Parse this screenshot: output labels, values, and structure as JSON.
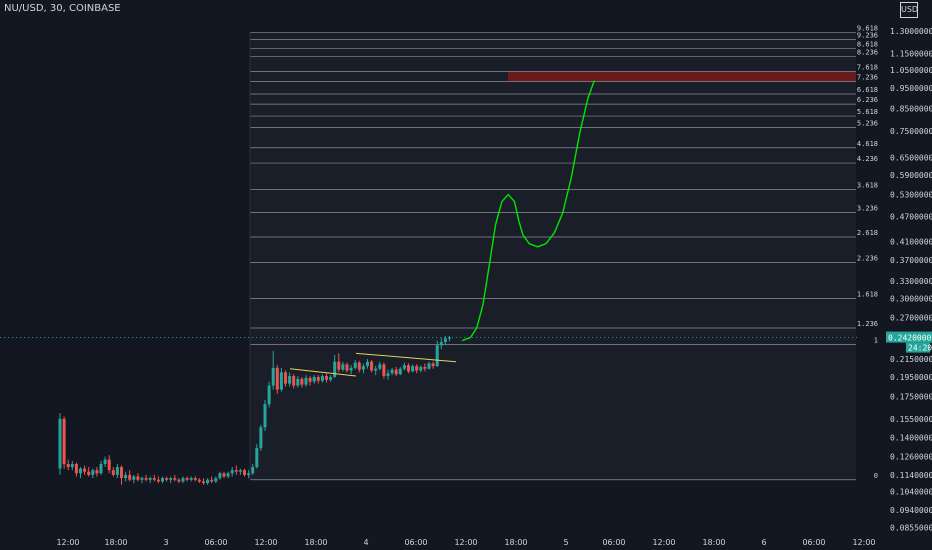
{
  "header": {
    "title": "NU/USD, 30, COINBASE",
    "currency": "USD"
  },
  "colors": {
    "background": "#131722",
    "text": "#d1d4dc",
    "up": "#26a69a",
    "down": "#ef5350",
    "projection": "#00e600",
    "trendline": "#e6d35a",
    "fib_line": "#8a8e97",
    "highlight": "#6b1a1a",
    "price_tag": "#26a69a"
  },
  "chart_data": {
    "type": "candlestick",
    "symbol": "NU/USD",
    "interval": "30",
    "exchange": "COINBASE",
    "y_axis": {
      "scale": "log",
      "range": [
        0.082,
        1.38
      ],
      "tick_labels": [
        "1.30000000",
        "1.15000000",
        "1.05000000",
        "0.95000000",
        "0.85000000",
        "0.75000000",
        "0.65000000",
        "0.59000000",
        "0.53000000",
        "0.47000000",
        "0.41000000",
        "0.37000000",
        "0.33000000",
        "0.30000000",
        "0.27000000",
        "0.24200000",
        "0.21500000",
        "0.19500000",
        "0.17500000",
        "0.15500000",
        "0.14000000",
        "0.12600000",
        "0.11400000",
        "0.10400000",
        "0.09400000",
        "0.08550000"
      ],
      "tick_values": [
        1.3,
        1.15,
        1.05,
        0.95,
        0.85,
        0.75,
        0.65,
        0.59,
        0.53,
        0.47,
        0.41,
        0.37,
        0.33,
        0.3,
        0.27,
        0.242,
        0.215,
        0.195,
        0.175,
        0.155,
        0.14,
        0.126,
        0.114,
        0.104,
        0.094,
        0.0855
      ]
    },
    "x_axis": {
      "labels": [
        "12:00",
        "18:00",
        "3",
        "06:00",
        "12:00",
        "18:00",
        "4",
        "06:00",
        "12:00",
        "18:00",
        "5",
        "06:00",
        "12:00",
        "18:00",
        "6",
        "06:00",
        "12:00"
      ]
    },
    "current_price": {
      "label": "0.24200000",
      "value": 0.242,
      "countdown": "24:20"
    },
    "fib_levels": [
      {
        "label": "0",
        "value": 0.111
      },
      {
        "label": "1",
        "value": 0.233
      },
      {
        "label": "1.236",
        "value": 0.255
      },
      {
        "label": "1.618",
        "value": 0.3
      },
      {
        "label": "2.236",
        "value": 0.365
      },
      {
        "label": "2.618",
        "value": 0.42
      },
      {
        "label": "3.236",
        "value": 0.48
      },
      {
        "label": "3.618",
        "value": 0.545
      },
      {
        "label": "4.236",
        "value": 0.63
      },
      {
        "label": "4.618",
        "value": 0.685
      },
      {
        "label": "5.236",
        "value": 0.765
      },
      {
        "label": "5.618",
        "value": 0.815
      },
      {
        "label": "6.236",
        "value": 0.87
      },
      {
        "label": "6.618",
        "value": 0.92
      },
      {
        "label": "7.236",
        "value": 0.985
      },
      {
        "label": "7.618",
        "value": 1.04
      },
      {
        "label": "8.236",
        "value": 1.13
      },
      {
        "label": "8.618",
        "value": 1.18
      },
      {
        "label": "9.236",
        "value": 1.24
      },
      {
        "label": "9.618",
        "value": 1.29
      }
    ],
    "highlight_level": "7.236",
    "candles": [
      {
        "o": 0.118,
        "h": 0.16,
        "l": 0.114,
        "c": 0.155
      },
      {
        "o": 0.155,
        "h": 0.157,
        "l": 0.118,
        "c": 0.121
      },
      {
        "o": 0.121,
        "h": 0.124,
        "l": 0.117,
        "c": 0.119
      },
      {
        "o": 0.119,
        "h": 0.123,
        "l": 0.117,
        "c": 0.121
      },
      {
        "o": 0.121,
        "h": 0.122,
        "l": 0.113,
        "c": 0.115
      },
      {
        "o": 0.115,
        "h": 0.119,
        "l": 0.112,
        "c": 0.118
      },
      {
        "o": 0.118,
        "h": 0.12,
        "l": 0.114,
        "c": 0.116
      },
      {
        "o": 0.116,
        "h": 0.119,
        "l": 0.113,
        "c": 0.114
      },
      {
        "o": 0.114,
        "h": 0.118,
        "l": 0.112,
        "c": 0.117
      },
      {
        "o": 0.117,
        "h": 0.119,
        "l": 0.113,
        "c": 0.115
      },
      {
        "o": 0.115,
        "h": 0.123,
        "l": 0.114,
        "c": 0.121
      },
      {
        "o": 0.121,
        "h": 0.126,
        "l": 0.119,
        "c": 0.124
      },
      {
        "o": 0.124,
        "h": 0.127,
        "l": 0.115,
        "c": 0.117
      },
      {
        "o": 0.117,
        "h": 0.119,
        "l": 0.113,
        "c": 0.114
      },
      {
        "o": 0.114,
        "h": 0.121,
        "l": 0.112,
        "c": 0.119
      },
      {
        "o": 0.119,
        "h": 0.12,
        "l": 0.108,
        "c": 0.112
      },
      {
        "o": 0.112,
        "h": 0.116,
        "l": 0.11,
        "c": 0.114
      },
      {
        "o": 0.114,
        "h": 0.117,
        "l": 0.11,
        "c": 0.111
      },
      {
        "o": 0.111,
        "h": 0.114,
        "l": 0.109,
        "c": 0.113
      },
      {
        "o": 0.113,
        "h": 0.115,
        "l": 0.11,
        "c": 0.111
      },
      {
        "o": 0.111,
        "h": 0.113,
        "l": 0.109,
        "c": 0.112
      },
      {
        "o": 0.112,
        "h": 0.114,
        "l": 0.11,
        "c": 0.111
      },
      {
        "o": 0.111,
        "h": 0.113,
        "l": 0.109,
        "c": 0.112
      },
      {
        "o": 0.112,
        "h": 0.114,
        "l": 0.11,
        "c": 0.111
      },
      {
        "o": 0.111,
        "h": 0.113,
        "l": 0.109,
        "c": 0.11
      },
      {
        "o": 0.11,
        "h": 0.113,
        "l": 0.109,
        "c": 0.112
      },
      {
        "o": 0.112,
        "h": 0.113,
        "l": 0.11,
        "c": 0.111
      },
      {
        "o": 0.111,
        "h": 0.113,
        "l": 0.109,
        "c": 0.112
      },
      {
        "o": 0.112,
        "h": 0.114,
        "l": 0.11,
        "c": 0.111
      },
      {
        "o": 0.111,
        "h": 0.112,
        "l": 0.109,
        "c": 0.11
      },
      {
        "o": 0.11,
        "h": 0.113,
        "l": 0.109,
        "c": 0.112
      },
      {
        "o": 0.112,
        "h": 0.113,
        "l": 0.11,
        "c": 0.111
      },
      {
        "o": 0.111,
        "h": 0.113,
        "l": 0.11,
        "c": 0.112
      },
      {
        "o": 0.112,
        "h": 0.113,
        "l": 0.11,
        "c": 0.111
      },
      {
        "o": 0.111,
        "h": 0.112,
        "l": 0.109,
        "c": 0.11
      },
      {
        "o": 0.11,
        "h": 0.112,
        "l": 0.108,
        "c": 0.109
      },
      {
        "o": 0.109,
        "h": 0.112,
        "l": 0.108,
        "c": 0.111
      },
      {
        "o": 0.111,
        "h": 0.113,
        "l": 0.109,
        "c": 0.11
      },
      {
        "o": 0.11,
        "h": 0.113,
        "l": 0.109,
        "c": 0.112
      },
      {
        "o": 0.112,
        "h": 0.116,
        "l": 0.111,
        "c": 0.115
      },
      {
        "o": 0.115,
        "h": 0.116,
        "l": 0.112,
        "c": 0.113
      },
      {
        "o": 0.113,
        "h": 0.116,
        "l": 0.112,
        "c": 0.115
      },
      {
        "o": 0.115,
        "h": 0.119,
        "l": 0.113,
        "c": 0.117
      },
      {
        "o": 0.117,
        "h": 0.12,
        "l": 0.114,
        "c": 0.116
      },
      {
        "o": 0.116,
        "h": 0.118,
        "l": 0.114,
        "c": 0.117
      },
      {
        "o": 0.117,
        "h": 0.118,
        "l": 0.113,
        "c": 0.114
      },
      {
        "o": 0.114,
        "h": 0.117,
        "l": 0.112,
        "c": 0.115
      },
      {
        "o": 0.115,
        "h": 0.121,
        "l": 0.114,
        "c": 0.119
      },
      {
        "o": 0.119,
        "h": 0.135,
        "l": 0.118,
        "c": 0.132
      },
      {
        "o": 0.132,
        "h": 0.15,
        "l": 0.13,
        "c": 0.148
      },
      {
        "o": 0.148,
        "h": 0.172,
        "l": 0.145,
        "c": 0.168
      },
      {
        "o": 0.168,
        "h": 0.19,
        "l": 0.165,
        "c": 0.186
      },
      {
        "o": 0.186,
        "h": 0.225,
        "l": 0.182,
        "c": 0.205
      },
      {
        "o": 0.205,
        "h": 0.208,
        "l": 0.178,
        "c": 0.182
      },
      {
        "o": 0.182,
        "h": 0.205,
        "l": 0.18,
        "c": 0.2
      },
      {
        "o": 0.2,
        "h": 0.202,
        "l": 0.185,
        "c": 0.188
      },
      {
        "o": 0.188,
        "h": 0.2,
        "l": 0.185,
        "c": 0.196
      },
      {
        "o": 0.196,
        "h": 0.198,
        "l": 0.183,
        "c": 0.186
      },
      {
        "o": 0.186,
        "h": 0.196,
        "l": 0.184,
        "c": 0.193
      },
      {
        "o": 0.193,
        "h": 0.195,
        "l": 0.184,
        "c": 0.187
      },
      {
        "o": 0.187,
        "h": 0.197,
        "l": 0.185,
        "c": 0.194
      },
      {
        "o": 0.194,
        "h": 0.196,
        "l": 0.186,
        "c": 0.19
      },
      {
        "o": 0.19,
        "h": 0.197,
        "l": 0.188,
        "c": 0.195
      },
      {
        "o": 0.195,
        "h": 0.197,
        "l": 0.188,
        "c": 0.191
      },
      {
        "o": 0.191,
        "h": 0.198,
        "l": 0.189,
        "c": 0.196
      },
      {
        "o": 0.196,
        "h": 0.199,
        "l": 0.189,
        "c": 0.192
      },
      {
        "o": 0.192,
        "h": 0.197,
        "l": 0.19,
        "c": 0.195
      },
      {
        "o": 0.195,
        "h": 0.22,
        "l": 0.194,
        "c": 0.212
      },
      {
        "o": 0.212,
        "h": 0.222,
        "l": 0.2,
        "c": 0.203
      },
      {
        "o": 0.203,
        "h": 0.212,
        "l": 0.201,
        "c": 0.209
      },
      {
        "o": 0.209,
        "h": 0.211,
        "l": 0.2,
        "c": 0.202
      },
      {
        "o": 0.202,
        "h": 0.208,
        "l": 0.198,
        "c": 0.205
      },
      {
        "o": 0.205,
        "h": 0.214,
        "l": 0.203,
        "c": 0.211
      },
      {
        "o": 0.211,
        "h": 0.213,
        "l": 0.2,
        "c": 0.203
      },
      {
        "o": 0.203,
        "h": 0.21,
        "l": 0.199,
        "c": 0.207
      },
      {
        "o": 0.207,
        "h": 0.215,
        "l": 0.204,
        "c": 0.212
      },
      {
        "o": 0.212,
        "h": 0.214,
        "l": 0.2,
        "c": 0.202
      },
      {
        "o": 0.202,
        "h": 0.207,
        "l": 0.197,
        "c": 0.204
      },
      {
        "o": 0.204,
        "h": 0.212,
        "l": 0.202,
        "c": 0.209
      },
      {
        "o": 0.209,
        "h": 0.211,
        "l": 0.193,
        "c": 0.196
      },
      {
        "o": 0.196,
        "h": 0.203,
        "l": 0.192,
        "c": 0.199
      },
      {
        "o": 0.199,
        "h": 0.205,
        "l": 0.197,
        "c": 0.203
      },
      {
        "o": 0.203,
        "h": 0.206,
        "l": 0.196,
        "c": 0.198
      },
      {
        "o": 0.198,
        "h": 0.206,
        "l": 0.197,
        "c": 0.204
      },
      {
        "o": 0.204,
        "h": 0.211,
        "l": 0.202,
        "c": 0.208
      },
      {
        "o": 0.208,
        "h": 0.21,
        "l": 0.199,
        "c": 0.201
      },
      {
        "o": 0.201,
        "h": 0.209,
        "l": 0.2,
        "c": 0.207
      },
      {
        "o": 0.207,
        "h": 0.209,
        "l": 0.199,
        "c": 0.202
      },
      {
        "o": 0.202,
        "h": 0.208,
        "l": 0.2,
        "c": 0.206
      },
      {
        "o": 0.206,
        "h": 0.21,
        "l": 0.201,
        "c": 0.204
      },
      {
        "o": 0.204,
        "h": 0.212,
        "l": 0.203,
        "c": 0.21
      },
      {
        "o": 0.21,
        "h": 0.212,
        "l": 0.204,
        "c": 0.207
      },
      {
        "o": 0.207,
        "h": 0.238,
        "l": 0.206,
        "c": 0.232
      },
      {
        "o": 0.232,
        "h": 0.242,
        "l": 0.227,
        "c": 0.236
      },
      {
        "o": 0.236,
        "h": 0.244,
        "l": 0.232,
        "c": 0.241
      },
      {
        "o": 0.241,
        "h": 0.244,
        "l": 0.237,
        "c": 0.242
      }
    ],
    "projection": [
      [
        0,
        0.238
      ],
      [
        8,
        0.242
      ],
      [
        14,
        0.255
      ],
      [
        20,
        0.29
      ],
      [
        26,
        0.36
      ],
      [
        32,
        0.45
      ],
      [
        38,
        0.51
      ],
      [
        44,
        0.53
      ],
      [
        50,
        0.51
      ],
      [
        54,
        0.46
      ],
      [
        58,
        0.425
      ],
      [
        64,
        0.405
      ],
      [
        72,
        0.398
      ],
      [
        80,
        0.405
      ],
      [
        88,
        0.43
      ],
      [
        96,
        0.48
      ],
      [
        104,
        0.58
      ],
      [
        112,
        0.74
      ],
      [
        120,
        0.9
      ],
      [
        126,
        0.99
      ]
    ],
    "trendlines": [
      [
        [
          0.204,
          0.193
        ],
        [
          0.232,
          0.195
        ]
      ],
      [
        [
          0.212,
          0.22
        ],
        [
          0.232,
          0.226
        ]
      ]
    ]
  }
}
